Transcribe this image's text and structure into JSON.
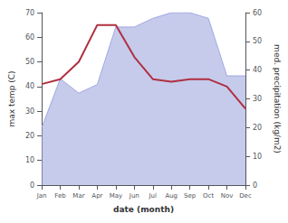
{
  "chart_data": {
    "type": "line",
    "xlabel": "date (month)",
    "ylabel": "max temp (C)",
    "y2label": "med. precipitation (kg/m2)",
    "categories": [
      "Jan",
      "Feb",
      "Mar",
      "Apr",
      "May",
      "Jun",
      "Jul",
      "Aug",
      "Sep",
      "Oct",
      "Nov",
      "Dec"
    ],
    "series": [
      {
        "type": "area",
        "axis": "y2",
        "color": "#a0a8e0",
        "values": [
          20,
          37,
          32,
          35,
          55,
          55,
          58,
          60,
          60,
          58,
          38,
          38
        ]
      },
      {
        "type": "line",
        "axis": "y",
        "color": "#b03040",
        "values": [
          41,
          43,
          50,
          65,
          65,
          52,
          43,
          42,
          43,
          43,
          40,
          31
        ]
      }
    ],
    "ylim": [
      0,
      70
    ],
    "yticks": [
      0,
      10,
      20,
      30,
      40,
      50,
      60,
      70
    ],
    "y2lim": [
      0,
      60
    ],
    "y2ticks": [
      0,
      10,
      20,
      30,
      40,
      50,
      60
    ],
    "grid": false
  }
}
